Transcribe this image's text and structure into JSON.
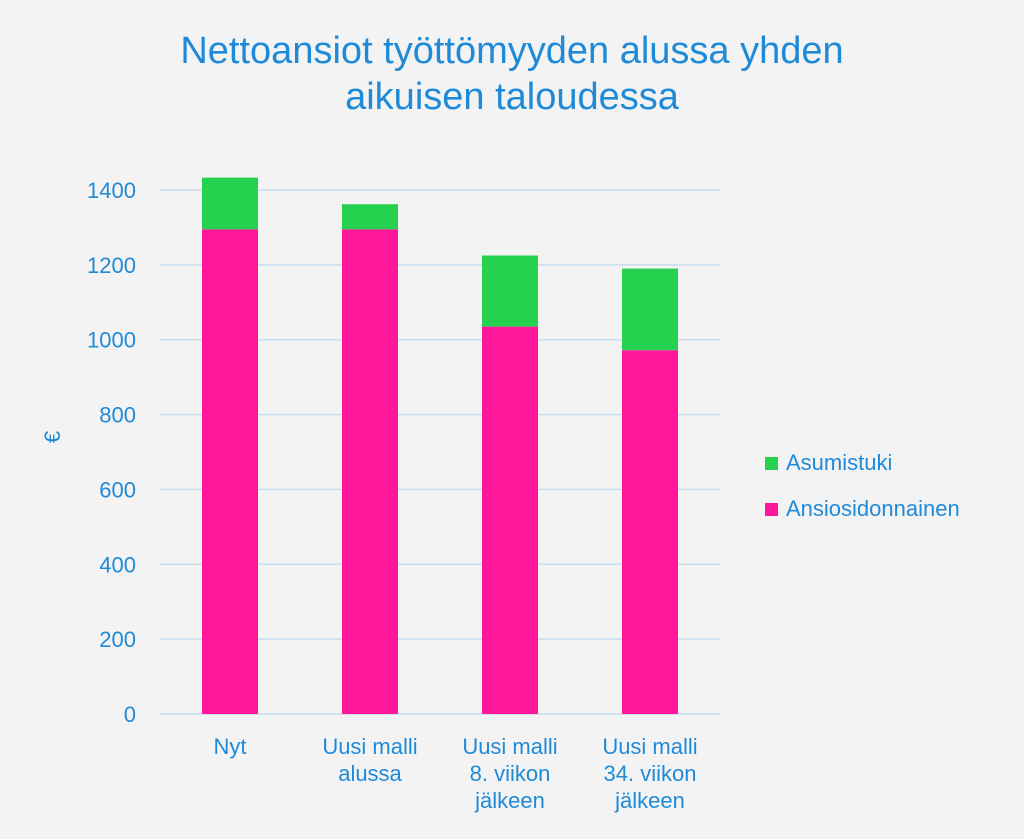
{
  "chart_data": {
    "type": "bar",
    "stacked": true,
    "title_lines": [
      "Nettoansiot työttömyyden alussa yhden",
      "aikuisen taloudessa"
    ],
    "ylabel": "€",
    "xlabel": "",
    "ylim": [
      0,
      1400
    ],
    "yticks": [
      0,
      200,
      400,
      600,
      800,
      1000,
      1200,
      1400
    ],
    "grid": true,
    "legend_position": "right",
    "categories": [
      [
        "Nyt"
      ],
      [
        "Uusi malli",
        "alussa"
      ],
      [
        "Uusi malli",
        "8. viikon",
        "jälkeen"
      ],
      [
        "Uusi malli",
        "34. viikon",
        "jälkeen"
      ]
    ],
    "series": [
      {
        "name": "Ansiosidonnainen",
        "color": "#ff169a",
        "values": [
          1295,
          1295,
          1035,
          972
        ]
      },
      {
        "name": "Asumistuki",
        "color": "#25d14e",
        "values": [
          138,
          67,
          190,
          218
        ]
      }
    ],
    "legend_order": [
      "Asumistuki",
      "Ansiosidonnainen"
    ],
    "colors": {
      "text": "#1f8ad8",
      "grid": "#c8dcee",
      "background": "#f3f3f3"
    }
  }
}
